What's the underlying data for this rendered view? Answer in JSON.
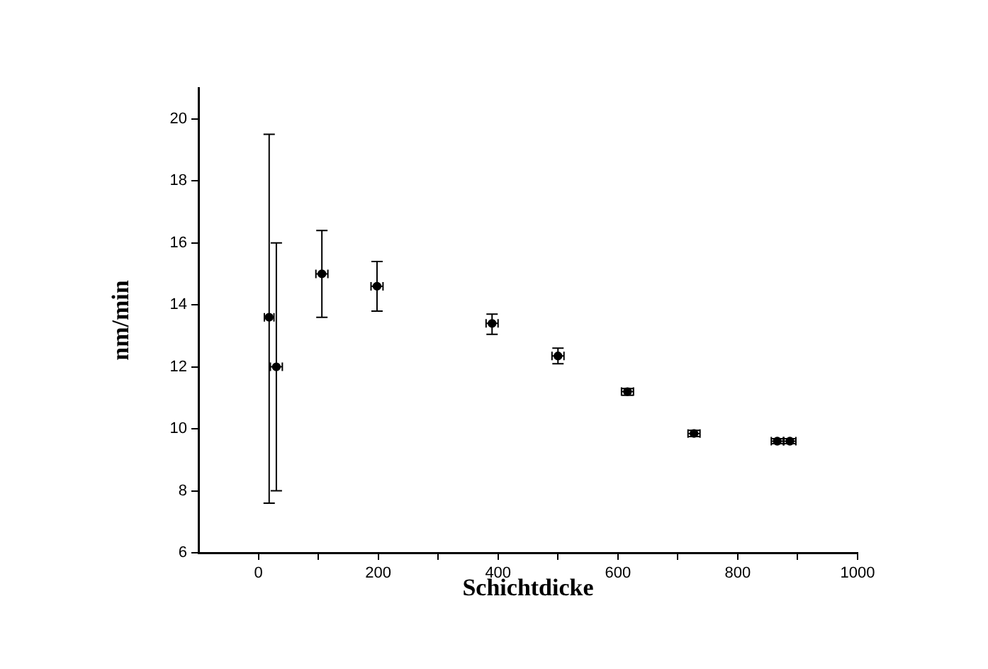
{
  "chart_data": {
    "type": "scatter",
    "xlabel": "Schichtdicke",
    "ylabel": "nm/min",
    "xlim": [
      -100,
      1000
    ],
    "xticks": [
      0,
      {
        "value": 100,
        "label": null
      },
      200,
      {
        "value": 300,
        "label": null
      },
      400,
      {
        "value": 500,
        "label": null
      },
      600,
      {
        "value": 700,
        "label": null
      },
      800,
      {
        "value": 900,
        "label": null
      },
      1000
    ],
    "ylim": [
      6,
      21
    ],
    "yticks": [
      6,
      8,
      10,
      12,
      14,
      16,
      18,
      20
    ],
    "grid": false,
    "legend": false,
    "series": [
      {
        "color": "#000000",
        "x": [
          18,
          30,
          106,
          198,
          390,
          500,
          616,
          727,
          866,
          887
        ],
        "values": [
          13.6,
          12.0,
          15.0,
          14.6,
          13.4,
          12.35,
          11.2,
          9.85,
          9.6,
          9.6
        ],
        "errors": [
          [
            7.6,
            19.5
          ],
          [
            8.0,
            16.0
          ],
          [
            13.6,
            16.4
          ],
          [
            13.8,
            15.4
          ],
          [
            13.05,
            13.7
          ],
          [
            12.1,
            12.6
          ],
          [
            11.08,
            11.3
          ],
          [
            9.75,
            9.95
          ],
          [
            9.52,
            9.68
          ],
          [
            9.52,
            9.68
          ]
        ],
        "xerrors": [
          8,
          10,
          10,
          10,
          10,
          10,
          10,
          10,
          10,
          10
        ]
      }
    ]
  }
}
